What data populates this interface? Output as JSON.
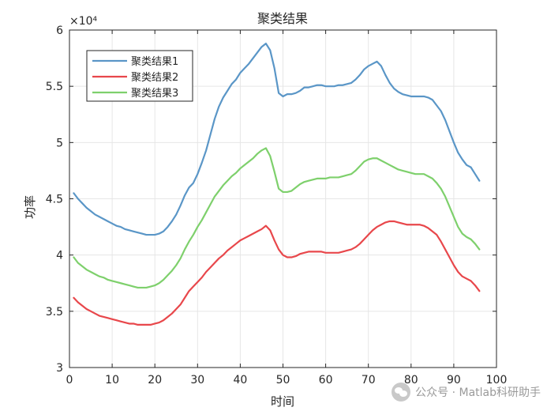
{
  "chart_data": {
    "type": "line",
    "title": "聚类结果",
    "xlabel": "时间",
    "ylabel": "功率",
    "exponent_label": "×10⁴",
    "xlim": [
      0,
      100
    ],
    "ylim": [
      3,
      6
    ],
    "x_ticks": [
      0,
      10,
      20,
      30,
      40,
      50,
      60,
      70,
      80,
      90,
      100
    ],
    "y_ticks": [
      3,
      3.5,
      4,
      4.5,
      5,
      5.5,
      6
    ],
    "y_tick_labels": [
      "3",
      "3.5",
      "4",
      "4.5",
      "5",
      "5.5",
      "6"
    ],
    "grid": true,
    "legend_position": "top-left",
    "x_start": 1,
    "series": [
      {
        "name": "聚类结果1",
        "color": "#5a96c7",
        "values": [
          4.55,
          4.5,
          4.46,
          4.42,
          4.39,
          4.36,
          4.34,
          4.32,
          4.3,
          4.28,
          4.26,
          4.25,
          4.23,
          4.22,
          4.21,
          4.2,
          4.19,
          4.18,
          4.18,
          4.18,
          4.19,
          4.21,
          4.25,
          4.3,
          4.36,
          4.44,
          4.53,
          4.6,
          4.64,
          4.72,
          4.82,
          4.93,
          5.07,
          5.21,
          5.32,
          5.4,
          5.46,
          5.52,
          5.56,
          5.62,
          5.66,
          5.7,
          5.75,
          5.8,
          5.85,
          5.88,
          5.82,
          5.66,
          5.44,
          5.41,
          5.43,
          5.43,
          5.44,
          5.46,
          5.49,
          5.49,
          5.5,
          5.51,
          5.51,
          5.5,
          5.5,
          5.5,
          5.51,
          5.51,
          5.52,
          5.53,
          5.56,
          5.6,
          5.65,
          5.68,
          5.7,
          5.72,
          5.68,
          5.6,
          5.53,
          5.48,
          5.45,
          5.43,
          5.42,
          5.41,
          5.41,
          5.41,
          5.41,
          5.4,
          5.38,
          5.33,
          5.28,
          5.2,
          5.1,
          5.0,
          4.91,
          4.85,
          4.8,
          4.78,
          4.72,
          4.66
        ]
      },
      {
        "name": "聚类结果2",
        "color": "#e8474b",
        "values": [
          3.62,
          3.58,
          3.55,
          3.52,
          3.5,
          3.48,
          3.46,
          3.45,
          3.44,
          3.43,
          3.42,
          3.41,
          3.4,
          3.39,
          3.39,
          3.38,
          3.38,
          3.38,
          3.38,
          3.39,
          3.4,
          3.42,
          3.45,
          3.48,
          3.52,
          3.56,
          3.62,
          3.68,
          3.72,
          3.76,
          3.8,
          3.85,
          3.89,
          3.93,
          3.97,
          4.0,
          4.04,
          4.07,
          4.1,
          4.13,
          4.15,
          4.17,
          4.19,
          4.21,
          4.23,
          4.26,
          4.22,
          4.13,
          4.05,
          4.0,
          3.98,
          3.98,
          3.99,
          4.01,
          4.02,
          4.03,
          4.03,
          4.03,
          4.03,
          4.02,
          4.02,
          4.02,
          4.02,
          4.03,
          4.04,
          4.05,
          4.07,
          4.1,
          4.14,
          4.18,
          4.22,
          4.25,
          4.27,
          4.29,
          4.3,
          4.3,
          4.29,
          4.28,
          4.27,
          4.27,
          4.27,
          4.27,
          4.26,
          4.24,
          4.21,
          4.18,
          4.12,
          4.05,
          3.98,
          3.91,
          3.85,
          3.81,
          3.79,
          3.77,
          3.73,
          3.68
        ]
      },
      {
        "name": "聚类结果3",
        "color": "#7ed06c",
        "values": [
          3.98,
          3.93,
          3.9,
          3.87,
          3.85,
          3.83,
          3.81,
          3.8,
          3.78,
          3.77,
          3.76,
          3.75,
          3.74,
          3.73,
          3.72,
          3.71,
          3.71,
          3.71,
          3.72,
          3.73,
          3.75,
          3.78,
          3.82,
          3.86,
          3.91,
          3.97,
          4.05,
          4.12,
          4.18,
          4.25,
          4.31,
          4.38,
          4.45,
          4.52,
          4.57,
          4.62,
          4.66,
          4.7,
          4.73,
          4.77,
          4.8,
          4.83,
          4.86,
          4.9,
          4.93,
          4.95,
          4.88,
          4.74,
          4.59,
          4.56,
          4.56,
          4.57,
          4.6,
          4.63,
          4.65,
          4.66,
          4.67,
          4.68,
          4.68,
          4.68,
          4.69,
          4.69,
          4.69,
          4.7,
          4.71,
          4.72,
          4.75,
          4.79,
          4.83,
          4.85,
          4.86,
          4.86,
          4.84,
          4.82,
          4.8,
          4.78,
          4.76,
          4.75,
          4.74,
          4.73,
          4.72,
          4.72,
          4.72,
          4.7,
          4.68,
          4.64,
          4.59,
          4.52,
          4.43,
          4.34,
          4.25,
          4.19,
          4.16,
          4.14,
          4.1,
          4.05
        ]
      }
    ]
  },
  "watermark": {
    "text": "公众号 · Matlab科研助手",
    "icon": "wechat-icon"
  }
}
